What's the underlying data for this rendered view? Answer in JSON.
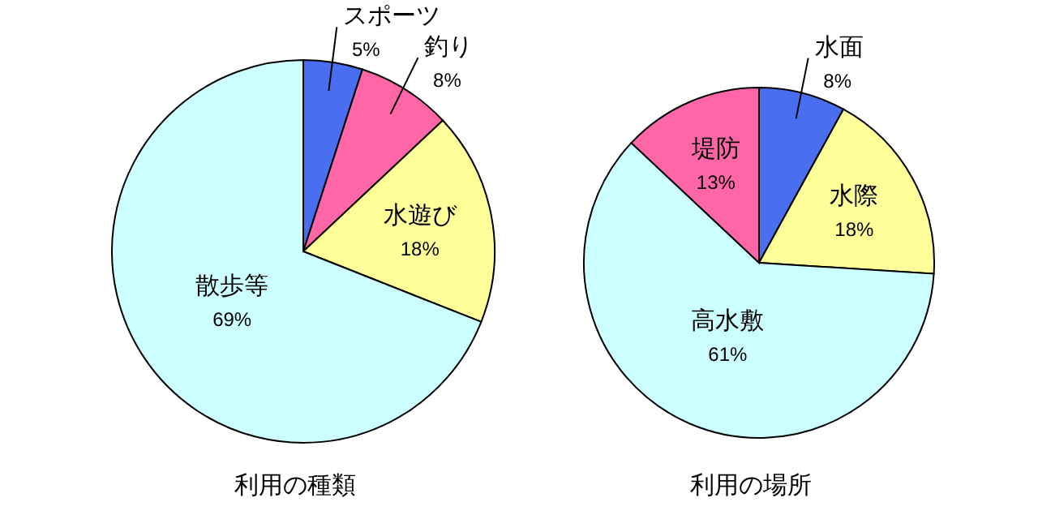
{
  "chart_data": [
    {
      "type": "pie",
      "title": "利用の種類",
      "categories": [
        "スポーツ",
        "釣り",
        "水遊び",
        "散歩等"
      ],
      "values": [
        5,
        8,
        18,
        69
      ],
      "value_labels": [
        "5%",
        "8%",
        "18%",
        "69%"
      ],
      "colors": [
        "#4a6ef0",
        "#ff66a8",
        "#ffff99",
        "#ccffff"
      ]
    },
    {
      "type": "pie",
      "title": "利用の場所",
      "categories": [
        "水面",
        "水際",
        "高水敷",
        "堤防"
      ],
      "values": [
        8,
        18,
        61,
        13
      ],
      "value_labels": [
        "8%",
        "18%",
        "61%",
        "13%"
      ],
      "colors": [
        "#4a6ef0",
        "#ffff99",
        "#ccffff",
        "#ff66a8"
      ]
    }
  ]
}
